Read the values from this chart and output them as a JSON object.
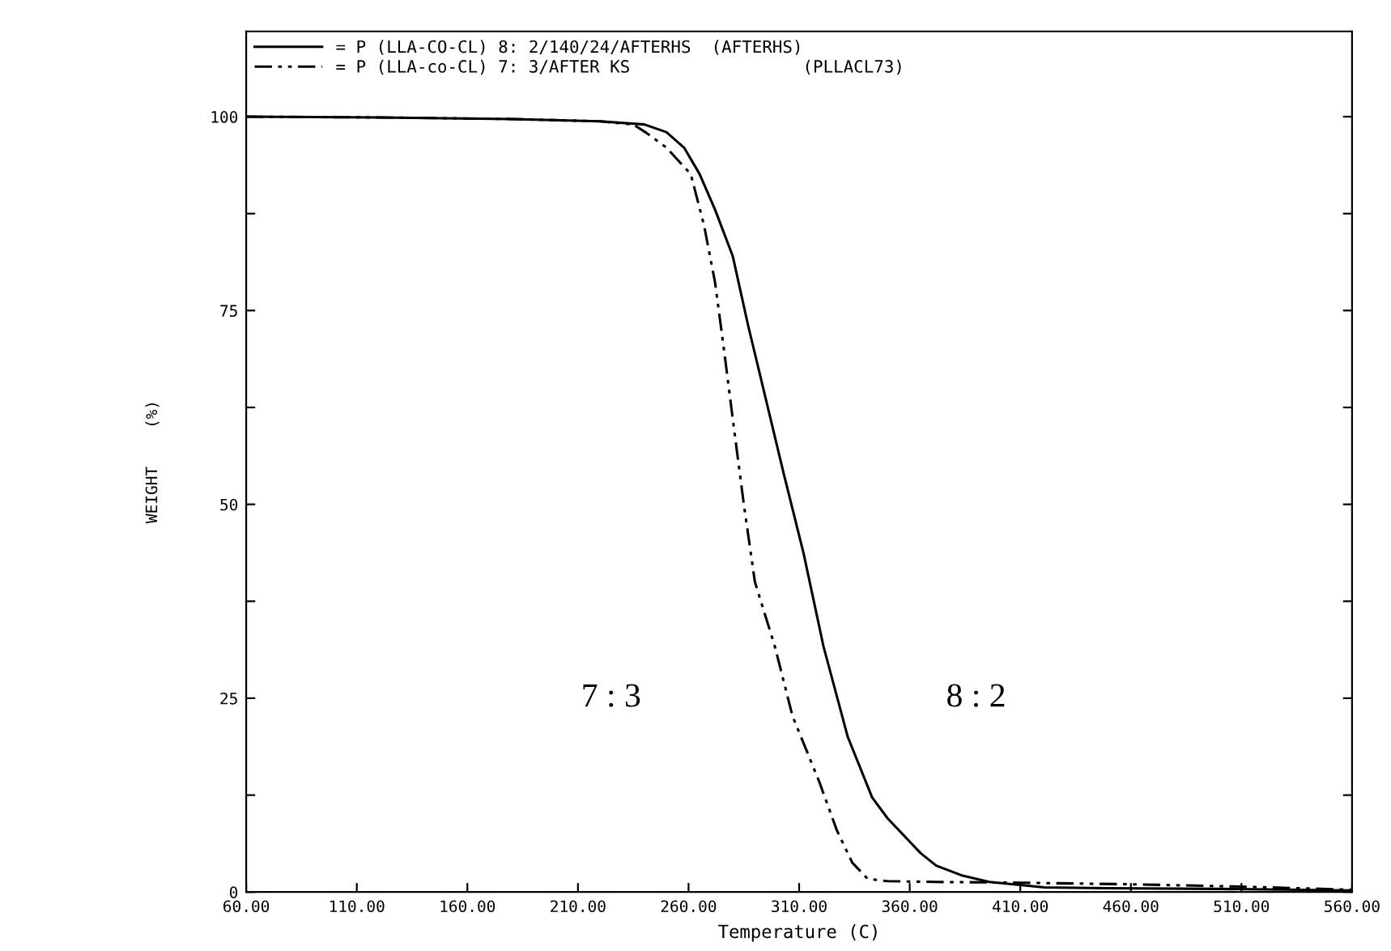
{
  "chart_data": {
    "type": "line",
    "xlabel": "Temperature (C)",
    "ylabel": "WEIGHT    (%)",
    "xlim": [
      60,
      560
    ],
    "ylim": [
      0,
      111
    ],
    "xticks": [
      {
        "value": 60,
        "label": "60.00"
      },
      {
        "value": 110,
        "label": "110.00"
      },
      {
        "value": 160,
        "label": "160.00"
      },
      {
        "value": 210,
        "label": "210.00"
      },
      {
        "value": 260,
        "label": "260.00"
      },
      {
        "value": 310,
        "label": "310.00"
      },
      {
        "value": 360,
        "label": "360.00"
      },
      {
        "value": 410,
        "label": "410.00"
      },
      {
        "value": 460,
        "label": "460.00"
      },
      {
        "value": 510,
        "label": "510.00"
      },
      {
        "value": 560,
        "label": "560.00"
      }
    ],
    "yticks": [
      0,
      {
        "value": 12.5,
        "label": null
      },
      25,
      {
        "value": 37.5,
        "label": null
      },
      50,
      {
        "value": 62.5,
        "label": null
      },
      75,
      {
        "value": 87.5,
        "label": null
      },
      100
    ],
    "grid": false,
    "legend": "top left",
    "marker": "none",
    "series": [
      {
        "name": "= P (LLA-CO-CL) 8: 2/140/24/AFTERHS  (AFTERHS)",
        "color": "#000000",
        "line_style": "solid",
        "x": [
          60,
          120,
          180,
          220,
          240,
          250,
          258,
          265,
          272,
          280,
          287,
          294,
          303,
          312,
          321,
          332,
          343,
          350,
          358,
          365,
          372,
          384,
          396,
          410,
          421,
          450,
          500,
          560
        ],
        "values": [
          100,
          99.9,
          99.7,
          99.4,
          99,
          98,
          96,
          92.6,
          88,
          82,
          73,
          64.7,
          54,
          43.7,
          31.7,
          20,
          12.2,
          9.5,
          7.1,
          5,
          3.4,
          2.1,
          1.3,
          0.9,
          0.6,
          0.5,
          0.4,
          0.2
        ]
      },
      {
        "name": "= P (LLA-co-CL) 7: 3/AFTER KS                 (PLLACL73)",
        "color": "#000000",
        "line_style": "dashed",
        "x": [
          60,
          120,
          180,
          220,
          235,
          241,
          250,
          261,
          267,
          272,
          276,
          280,
          285,
          290,
          299,
          307,
          319,
          327,
          334,
          341,
          350,
          372,
          410,
          460,
          510,
          560
        ],
        "values": [
          100,
          99.9,
          99.7,
          99.4,
          99,
          97.9,
          96,
          92.6,
          86,
          78.6,
          70,
          61,
          50,
          40,
          31.7,
          22.7,
          14.3,
          8,
          3.8,
          1.7,
          1.4,
          1.3,
          1.2,
          1,
          0.7,
          0.3
        ]
      }
    ],
    "annotations": [
      "7 : 3",
      "8 : 2"
    ]
  }
}
